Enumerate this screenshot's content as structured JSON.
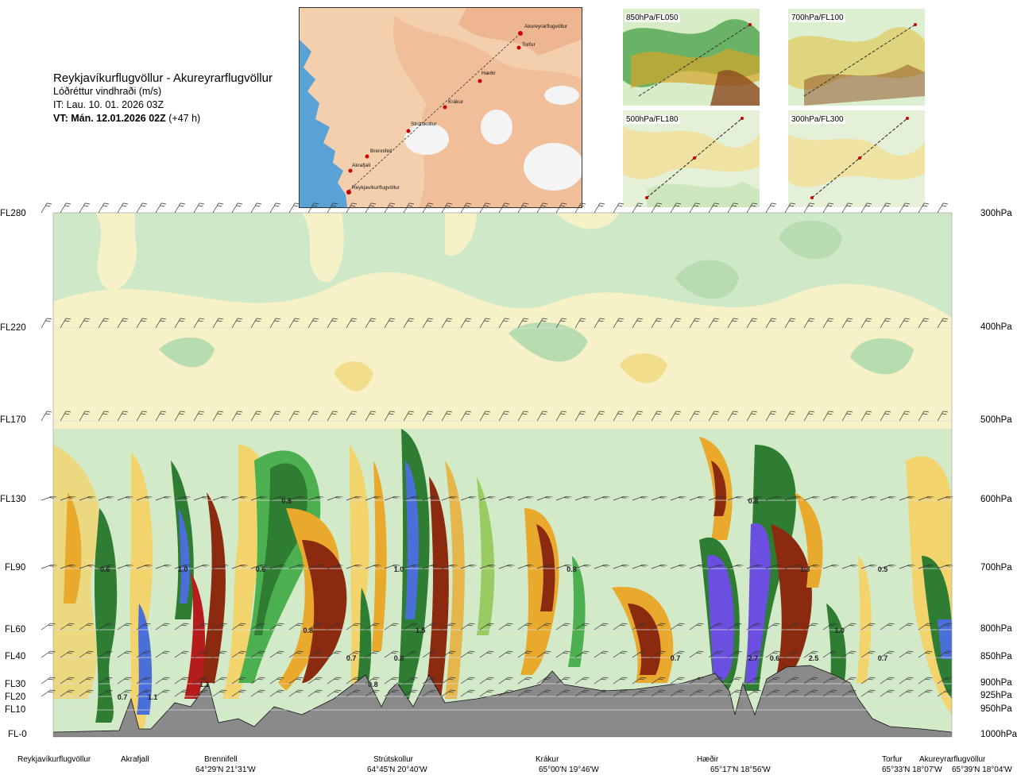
{
  "title": {
    "route": "Reykjavíkurflugvöllur - Akureyrarflugvöllur",
    "parameter": "Lóðréttur vindhraði (m/s)",
    "it": "IT: Lau. 10. 01. 2026 03Z",
    "vt_bold": "VT: Mán. 12.01.2026 02Z",
    "vt_lead": "(+47 h)"
  },
  "map": {
    "waypoints": [
      "Akureyrarflugvöllur",
      "Torfur",
      "Hæðir",
      "Krákur",
      "Strútskollur",
      "Brennifell",
      "Akrafjall",
      "Reykjavíkurflugvöllur"
    ]
  },
  "thumbnails": [
    {
      "label": "850hPa/FL050"
    },
    {
      "label": "700hPa/FL100"
    },
    {
      "label": "500hPa/FL180"
    },
    {
      "label": "300hPa/FL300"
    }
  ],
  "levels_left": [
    "FL280",
    "FL220",
    "FL170",
    "FL130",
    "FL90",
    "FL60",
    "FL40",
    "FL30",
    "FL20",
    "FL10",
    "FL-0"
  ],
  "levels_right": [
    "300hPa",
    "400hPa",
    "500hPa",
    "600hPa",
    "700hPa",
    "800hPa",
    "850hPa",
    "900hPa",
    "925hPa",
    "950hPa",
    "1000hPa"
  ],
  "locations": [
    {
      "name": "Reykjavíkurflugvöllur",
      "coord": ""
    },
    {
      "name": "Akrafjall",
      "coord": ""
    },
    {
      "name": "Brennifell",
      "coord": "64°29'N 21°31'W"
    },
    {
      "name": "Strútskollur",
      "coord": "64°45'N 20°40'W"
    },
    {
      "name": "Krákur",
      "coord": "65°00'N 19°46'W"
    },
    {
      "name": "Hæðir",
      "coord": "65°17'N 18°56'W"
    },
    {
      "name": "Torfur",
      "coord": "65°33'N 18°07'W"
    },
    {
      "name": "Akureyrarflugvöllur",
      "coord": "65°39'N 18°04'W"
    }
  ],
  "chart_data": {
    "type": "heatmap",
    "title": "Lóðréttur vindhraði (m/s)",
    "xlabel": "",
    "ylabel": "",
    "x_locations": [
      "Reykjavíkurflugvöllur",
      "Akrafjall",
      "Brennifell",
      "Strútskollur",
      "Krákur",
      "Hæðir",
      "Torfur",
      "Akureyrarflugvöllur"
    ],
    "y_levels_hPa": [
      300,
      400,
      500,
      600,
      700,
      800,
      850,
      900,
      925,
      950,
      1000
    ],
    "y_levels_FL": [
      "FL280",
      "FL220",
      "FL170",
      "FL130",
      "FL90",
      "FL60",
      "FL40",
      "FL30",
      "FL20",
      "FL10",
      "FL-0"
    ],
    "contour_labels": [
      {
        "value": "0.6",
        "x_km": 60,
        "level": 700
      },
      {
        "value": "1.0",
        "x_km": 150,
        "level": 700
      },
      {
        "value": "0.6",
        "x_km": 240,
        "level": 700
      },
      {
        "value": "0.5",
        "x_km": 270,
        "level": 600
      },
      {
        "value": "0.8",
        "x_km": 295,
        "level": 800
      },
      {
        "value": "1.0",
        "x_km": 400,
        "level": 700
      },
      {
        "value": "1.5",
        "x_km": 425,
        "level": 800
      },
      {
        "value": "0.7",
        "x_km": 345,
        "level": 850
      },
      {
        "value": "0.8",
        "x_km": 400,
        "level": 850
      },
      {
        "value": "0.8",
        "x_km": 370,
        "level": 900
      },
      {
        "value": "0.7",
        "x_km": 80,
        "level": 925
      },
      {
        "value": "1.1",
        "x_km": 115,
        "level": 925
      },
      {
        "value": "1.1",
        "x_km": 175,
        "level": 900
      },
      {
        "value": "0.8",
        "x_km": 600,
        "level": 700
      },
      {
        "value": "0.7",
        "x_km": 720,
        "level": 850
      },
      {
        "value": "0.8",
        "x_km": 810,
        "level": 600
      },
      {
        "value": "1.3",
        "x_km": 870,
        "level": 700
      },
      {
        "value": "0.5",
        "x_km": 960,
        "level": 700
      },
      {
        "value": "2.7",
        "x_km": 810,
        "level": 850
      },
      {
        "value": "0.6",
        "x_km": 835,
        "level": 850
      },
      {
        "value": "2.5",
        "x_km": 880,
        "level": 850
      },
      {
        "value": "1.0",
        "x_km": 910,
        "level": 800
      },
      {
        "value": "0.7",
        "x_km": 960,
        "level": 850
      }
    ],
    "colorscale": [
      "#4a6fd8",
      "#2e7d32",
      "#4caf50",
      "#8bc34a",
      "#c8e6c9",
      "#e8f5e9",
      "#f4efc0",
      "#f3d36b",
      "#e9a92d",
      "#c8661a",
      "#8b2a0e",
      "#b71c1c",
      "#6a4fe0"
    ],
    "grid": true
  },
  "colors": {
    "terrain": "#8a8a8a",
    "sea": "#5aa2d6",
    "land": "#f2c7a4"
  }
}
